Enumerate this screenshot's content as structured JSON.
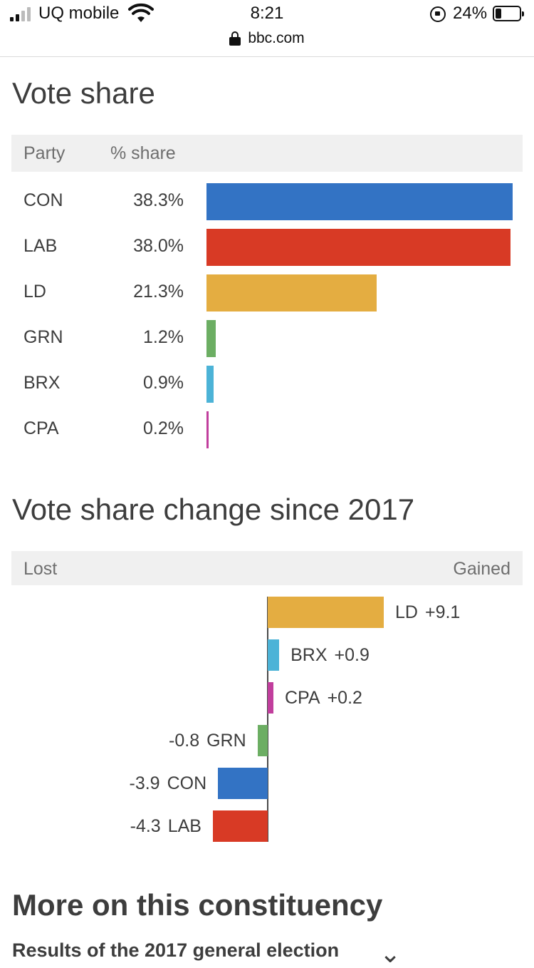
{
  "status_bar": {
    "carrier": "UQ mobile",
    "time": "8:21",
    "url": "bbc.com",
    "battery_percent": "24%",
    "battery_level": 0.24
  },
  "vote_share": {
    "title": "Vote share",
    "header_party": "Party",
    "header_share": "% share",
    "rows": [
      {
        "party": "CON",
        "share": "38.3%",
        "value": 38.3,
        "color": "#3373c4"
      },
      {
        "party": "LAB",
        "share": "38.0%",
        "value": 38.0,
        "color": "#d83a25"
      },
      {
        "party": "LD",
        "share": "21.3%",
        "value": 21.3,
        "color": "#e4ad41"
      },
      {
        "party": "GRN",
        "share": "1.2%",
        "value": 1.2,
        "color": "#6cae63"
      },
      {
        "party": "BRX",
        "share": "0.9%",
        "value": 0.9,
        "color": "#4cb3d7"
      },
      {
        "party": "CPA",
        "share": "0.2%",
        "value": 0.2,
        "color": "#c13e9d"
      }
    ]
  },
  "change": {
    "title": "Vote share change since 2017",
    "header_lost": "Lost",
    "header_gained": "Gained",
    "rows": [
      {
        "party": "LD",
        "change": "+9.1",
        "value": 9.1,
        "color": "#e4ad41"
      },
      {
        "party": "BRX",
        "change": "+0.9",
        "value": 0.9,
        "color": "#4cb3d7"
      },
      {
        "party": "CPA",
        "change": "+0.2",
        "value": 0.2,
        "color": "#c13e9d"
      },
      {
        "party": "GRN",
        "change": "-0.8",
        "value": -0.8,
        "color": "#6cae63"
      },
      {
        "party": "CON",
        "change": "-3.9",
        "value": -3.9,
        "color": "#3373c4"
      },
      {
        "party": "LAB",
        "change": "-4.3",
        "value": -4.3,
        "color": "#d83a25"
      }
    ]
  },
  "more": {
    "title": "More on this constituency",
    "link": "Results of the 2017 general election"
  }
}
